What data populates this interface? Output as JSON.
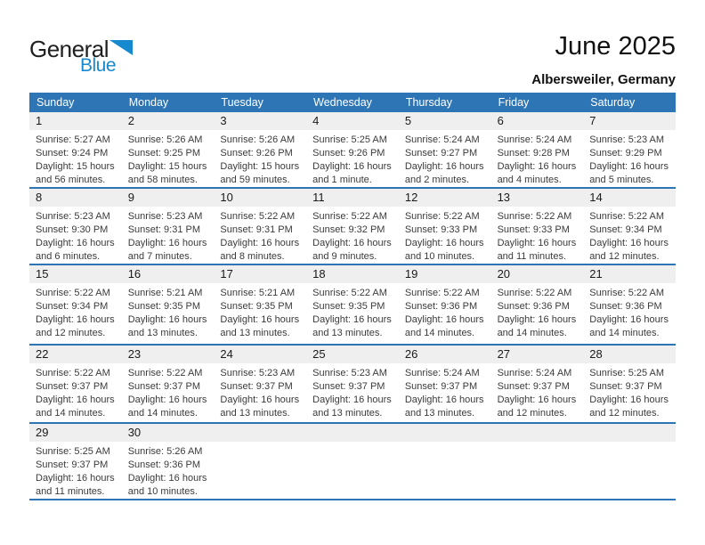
{
  "logo": {
    "text_top": "General",
    "text_bottom": "Blue",
    "triangle_icon": "blue-right-triangle"
  },
  "header": {
    "title": "June 2025",
    "location": "Albersweiler, Germany"
  },
  "colors": {
    "header_bar": "#2E75B6",
    "week_divider": "#2E75B6",
    "day_band": "#EFEFEF",
    "logo_blue": "#1789CE",
    "text_dark": "#1A1A1A",
    "text_detail": "#3B3B3B"
  },
  "weekdays": [
    "Sunday",
    "Monday",
    "Tuesday",
    "Wednesday",
    "Thursday",
    "Friday",
    "Saturday"
  ],
  "weeks": [
    [
      {
        "day": "1",
        "lines": [
          "Sunrise: 5:27 AM",
          "Sunset: 9:24 PM",
          "Daylight: 15 hours",
          "and 56 minutes."
        ]
      },
      {
        "day": "2",
        "lines": [
          "Sunrise: 5:26 AM",
          "Sunset: 9:25 PM",
          "Daylight: 15 hours",
          "and 58 minutes."
        ]
      },
      {
        "day": "3",
        "lines": [
          "Sunrise: 5:26 AM",
          "Sunset: 9:26 PM",
          "Daylight: 15 hours",
          "and 59 minutes."
        ]
      },
      {
        "day": "4",
        "lines": [
          "Sunrise: 5:25 AM",
          "Sunset: 9:26 PM",
          "Daylight: 16 hours",
          "and 1 minute."
        ]
      },
      {
        "day": "5",
        "lines": [
          "Sunrise: 5:24 AM",
          "Sunset: 9:27 PM",
          "Daylight: 16 hours",
          "and 2 minutes."
        ]
      },
      {
        "day": "6",
        "lines": [
          "Sunrise: 5:24 AM",
          "Sunset: 9:28 PM",
          "Daylight: 16 hours",
          "and 4 minutes."
        ]
      },
      {
        "day": "7",
        "lines": [
          "Sunrise: 5:23 AM",
          "Sunset: 9:29 PM",
          "Daylight: 16 hours",
          "and 5 minutes."
        ]
      }
    ],
    [
      {
        "day": "8",
        "lines": [
          "Sunrise: 5:23 AM",
          "Sunset: 9:30 PM",
          "Daylight: 16 hours",
          "and 6 minutes."
        ]
      },
      {
        "day": "9",
        "lines": [
          "Sunrise: 5:23 AM",
          "Sunset: 9:31 PM",
          "Daylight: 16 hours",
          "and 7 minutes."
        ]
      },
      {
        "day": "10",
        "lines": [
          "Sunrise: 5:22 AM",
          "Sunset: 9:31 PM",
          "Daylight: 16 hours",
          "and 8 minutes."
        ]
      },
      {
        "day": "11",
        "lines": [
          "Sunrise: 5:22 AM",
          "Sunset: 9:32 PM",
          "Daylight: 16 hours",
          "and 9 minutes."
        ]
      },
      {
        "day": "12",
        "lines": [
          "Sunrise: 5:22 AM",
          "Sunset: 9:33 PM",
          "Daylight: 16 hours",
          "and 10 minutes."
        ]
      },
      {
        "day": "13",
        "lines": [
          "Sunrise: 5:22 AM",
          "Sunset: 9:33 PM",
          "Daylight: 16 hours",
          "and 11 minutes."
        ]
      },
      {
        "day": "14",
        "lines": [
          "Sunrise: 5:22 AM",
          "Sunset: 9:34 PM",
          "Daylight: 16 hours",
          "and 12 minutes."
        ]
      }
    ],
    [
      {
        "day": "15",
        "lines": [
          "Sunrise: 5:22 AM",
          "Sunset: 9:34 PM",
          "Daylight: 16 hours",
          "and 12 minutes."
        ]
      },
      {
        "day": "16",
        "lines": [
          "Sunrise: 5:21 AM",
          "Sunset: 9:35 PM",
          "Daylight: 16 hours",
          "and 13 minutes."
        ]
      },
      {
        "day": "17",
        "lines": [
          "Sunrise: 5:21 AM",
          "Sunset: 9:35 PM",
          "Daylight: 16 hours",
          "and 13 minutes."
        ]
      },
      {
        "day": "18",
        "lines": [
          "Sunrise: 5:22 AM",
          "Sunset: 9:35 PM",
          "Daylight: 16 hours",
          "and 13 minutes."
        ]
      },
      {
        "day": "19",
        "lines": [
          "Sunrise: 5:22 AM",
          "Sunset: 9:36 PM",
          "Daylight: 16 hours",
          "and 14 minutes."
        ]
      },
      {
        "day": "20",
        "lines": [
          "Sunrise: 5:22 AM",
          "Sunset: 9:36 PM",
          "Daylight: 16 hours",
          "and 14 minutes."
        ]
      },
      {
        "day": "21",
        "lines": [
          "Sunrise: 5:22 AM",
          "Sunset: 9:36 PM",
          "Daylight: 16 hours",
          "and 14 minutes."
        ]
      }
    ],
    [
      {
        "day": "22",
        "lines": [
          "Sunrise: 5:22 AM",
          "Sunset: 9:37 PM",
          "Daylight: 16 hours",
          "and 14 minutes."
        ]
      },
      {
        "day": "23",
        "lines": [
          "Sunrise: 5:22 AM",
          "Sunset: 9:37 PM",
          "Daylight: 16 hours",
          "and 14 minutes."
        ]
      },
      {
        "day": "24",
        "lines": [
          "Sunrise: 5:23 AM",
          "Sunset: 9:37 PM",
          "Daylight: 16 hours",
          "and 13 minutes."
        ]
      },
      {
        "day": "25",
        "lines": [
          "Sunrise: 5:23 AM",
          "Sunset: 9:37 PM",
          "Daylight: 16 hours",
          "and 13 minutes."
        ]
      },
      {
        "day": "26",
        "lines": [
          "Sunrise: 5:24 AM",
          "Sunset: 9:37 PM",
          "Daylight: 16 hours",
          "and 13 minutes."
        ]
      },
      {
        "day": "27",
        "lines": [
          "Sunrise: 5:24 AM",
          "Sunset: 9:37 PM",
          "Daylight: 16 hours",
          "and 12 minutes."
        ]
      },
      {
        "day": "28",
        "lines": [
          "Sunrise: 5:25 AM",
          "Sunset: 9:37 PM",
          "Daylight: 16 hours",
          "and 12 minutes."
        ]
      }
    ],
    [
      {
        "day": "29",
        "lines": [
          "Sunrise: 5:25 AM",
          "Sunset: 9:37 PM",
          "Daylight: 16 hours",
          "and 11 minutes."
        ]
      },
      {
        "day": "30",
        "lines": [
          "Sunrise: 5:26 AM",
          "Sunset: 9:36 PM",
          "Daylight: 16 hours",
          "and 10 minutes."
        ]
      },
      null,
      null,
      null,
      null,
      null
    ]
  ]
}
